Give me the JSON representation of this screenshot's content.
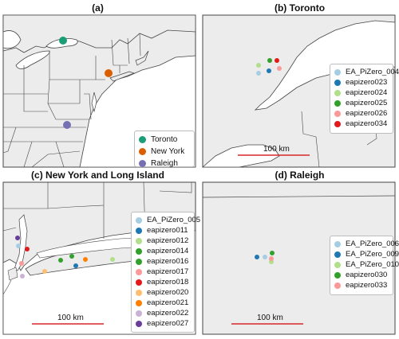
{
  "colors": {
    "land": "#ececec",
    "water": "#ffffff",
    "border": "#444444",
    "scalebar": "#d62728"
  },
  "panel_a": {
    "title": "(a)",
    "legend": [
      {
        "label": "Toronto",
        "color": "#1b9e77"
      },
      {
        "label": "New York",
        "color": "#d95f02"
      },
      {
        "label": "Raleigh",
        "color": "#7570b3"
      }
    ]
  },
  "panel_b": {
    "title": "(b) Toronto",
    "scale_label": "100 km",
    "legend": [
      {
        "label": "EA_PiZero_004",
        "color": "#a6cee3"
      },
      {
        "label": "eapizero023",
        "color": "#1f78b4"
      },
      {
        "label": "eapizero024",
        "color": "#b2df8a"
      },
      {
        "label": "eapizero025",
        "color": "#33a02c"
      },
      {
        "label": "eapizero026",
        "color": "#fb9a99"
      },
      {
        "label": "eapizero034",
        "color": "#e31a1c"
      }
    ]
  },
  "panel_c": {
    "title": "(c) New York and Long Island",
    "scale_label": "100 km",
    "legend": [
      {
        "label": "EA_PiZero_005",
        "color": "#a6cee3"
      },
      {
        "label": "eapizero011",
        "color": "#1f78b4"
      },
      {
        "label": "eapizero012",
        "color": "#b2df8a"
      },
      {
        "label": "eapizero014",
        "color": "#33a02c"
      },
      {
        "label": "eapizero016",
        "color": "#33a02c"
      },
      {
        "label": "eapizero017",
        "color": "#fb9a99"
      },
      {
        "label": "eapizero018",
        "color": "#e31a1c"
      },
      {
        "label": "eapizero020",
        "color": "#fdbf6f"
      },
      {
        "label": "eapizero021",
        "color": "#ff7f00"
      },
      {
        "label": "eapizero022",
        "color": "#cab2d6"
      },
      {
        "label": "eapizero027",
        "color": "#6a3d9a"
      }
    ]
  },
  "panel_d": {
    "title": "(d) Raleigh",
    "scale_label": "100 km",
    "legend": [
      {
        "label": "EA_PiZero_006",
        "color": "#a6cee3"
      },
      {
        "label": "EA_PiZero_009",
        "color": "#1f78b4"
      },
      {
        "label": "EA_PiZero_010",
        "color": "#b2df8a"
      },
      {
        "label": "eapizero030",
        "color": "#33a02c"
      },
      {
        "label": "eapizero033",
        "color": "#fb9a99"
      }
    ]
  }
}
